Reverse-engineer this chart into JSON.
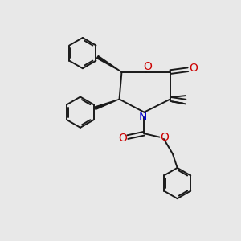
{
  "background_color": "#e8e8e8",
  "bond_color": "#1a1a1a",
  "O_color": "#cc0000",
  "N_color": "#0000cc",
  "figsize": [
    3.0,
    3.0
  ],
  "dpi": 100,
  "xlim": [
    0,
    10
  ],
  "ylim": [
    0,
    10
  ]
}
